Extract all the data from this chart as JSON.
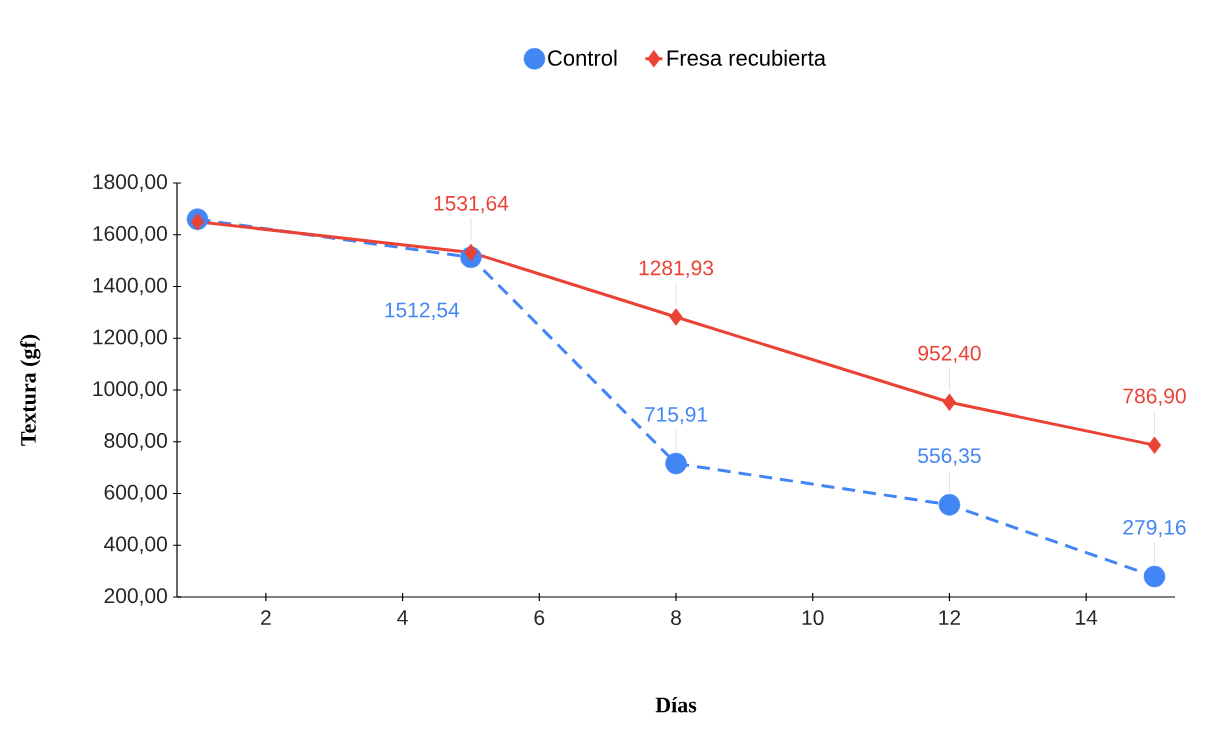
{
  "chart_data": {
    "type": "line",
    "xlabel": "**Días**",
    "ylabel": "**Textura (gf)**",
    "x": [
      1,
      5,
      8,
      12,
      15
    ],
    "series": [
      {
        "name": "Control",
        "color": "#4285f4",
        "marker": "circle",
        "line_style": "dashed",
        "values": [
          1660,
          1512.54,
          715.91,
          556.35,
          279.16
        ],
        "value_labels": [
          null,
          "1512,54",
          "715,91",
          "556,35",
          "279,16"
        ]
      },
      {
        "name": "Fresa recubierta",
        "color": "#ea4335",
        "marker": "diamond",
        "line_style": "solid",
        "values": [
          1650,
          1531.64,
          1281.93,
          952.4,
          786.9
        ],
        "value_labels": [
          null,
          "1531,64",
          "1281,93",
          "952,40",
          "786,90"
        ]
      }
    ],
    "xlim": [
      0.7,
      15.3
    ],
    "xticks": [
      2,
      4,
      6,
      8,
      10,
      12,
      14
    ],
    "ylim": [
      200,
      1800
    ],
    "yticks": [
      {
        "value": 200,
        "label": "200,00"
      },
      {
        "value": 400,
        "label": "400,00"
      },
      {
        "value": 600,
        "label": "600,00"
      },
      {
        "value": 800,
        "label": "800,00"
      },
      {
        "value": 1000,
        "label": "1000,00"
      },
      {
        "value": 1200,
        "label": "1200,00"
      },
      {
        "value": 1400,
        "label": "1400,00"
      },
      {
        "value": 1600,
        "label": "1600,00"
      },
      {
        "value": 1800,
        "label": "1800,00"
      }
    ],
    "grid": false,
    "legend": "top"
  }
}
